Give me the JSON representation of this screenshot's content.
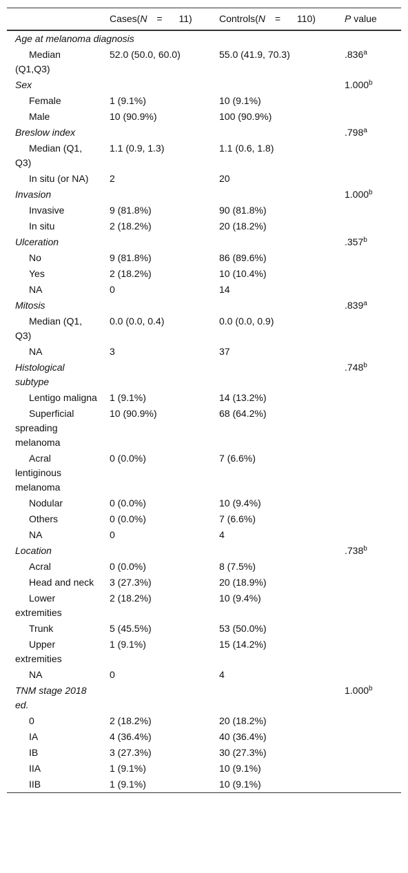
{
  "table": {
    "header": {
      "cases": {
        "pre": "Cases(",
        "var": "N",
        "eq": "=",
        "n": "11)"
      },
      "controls": {
        "pre": "Controls(",
        "var": "N",
        "eq": "=",
        "n": "110)"
      },
      "p": {
        "var": "P",
        "post": " value"
      }
    },
    "groups": [
      {
        "title": "Age at melanoma diagnosis",
        "rows": [
          {
            "label": "Median (Q1,Q3)",
            "cases": "52.0 (50.0, 60.0)",
            "controls": "55.0 (41.9, 70.3)",
            "p": ".836",
            "p_note": "a"
          }
        ]
      },
      {
        "title": "Sex",
        "p": "1.000",
        "p_note": "b",
        "rows": [
          {
            "label": "Female",
            "cases": "1 (9.1%)",
            "controls": "10 (9.1%)"
          },
          {
            "label": "Male",
            "cases": "10 (90.9%)",
            "controls": "100 (90.9%)"
          }
        ]
      },
      {
        "title": "Breslow index",
        "p": ".798",
        "p_note": "a",
        "rows": [
          {
            "label": "Median (Q1, Q3)",
            "cases": "1.1 (0.9, 1.3)",
            "controls": "1.1 (0.6, 1.8)"
          },
          {
            "label": "In situ (or NA)",
            "cases": "2",
            "controls": "20"
          }
        ]
      },
      {
        "title": "Invasion",
        "p": "1.000",
        "p_note": "b",
        "rows": [
          {
            "label": "Invasive",
            "cases": "9 (81.8%)",
            "controls": "90 (81.8%)"
          },
          {
            "label": "In situ",
            "cases": "2 (18.2%)",
            "controls": "20 (18.2%)"
          }
        ]
      },
      {
        "title": "Ulceration",
        "p": ".357",
        "p_note": "b",
        "rows": [
          {
            "label": "No",
            "cases": "9 (81.8%)",
            "controls": "86 (89.6%)"
          },
          {
            "label": "Yes",
            "cases": "2 (18.2%)",
            "controls": "10 (10.4%)"
          },
          {
            "label": "NA",
            "cases": "0",
            "controls": "14"
          }
        ]
      },
      {
        "title": "Mitosis",
        "p": ".839",
        "p_note": "a",
        "rows": [
          {
            "label": "Median (Q1, Q3)",
            "cases": "0.0 (0.0, 0.4)",
            "controls": "0.0 (0.0, 0.9)"
          },
          {
            "label": "NA",
            "cases": "3",
            "controls": "37"
          }
        ]
      },
      {
        "title": "Histological subtype",
        "p": ".748",
        "p_note": "b",
        "rows": [
          {
            "label": "Lentigo maligna",
            "cases": "1 (9.1%)",
            "controls": "14 (13.2%)"
          },
          {
            "label": "Superficial spreading melanoma",
            "cases": "10 (90.9%)",
            "controls": "68 (64.2%)"
          },
          {
            "label": "Acral lentiginous melanoma",
            "cases": "0 (0.0%)",
            "controls": "7 (6.6%)"
          },
          {
            "label": "Nodular",
            "cases": "0 (0.0%)",
            "controls": "10 (9.4%)"
          },
          {
            "label": "Others",
            "cases": "0 (0.0%)",
            "controls": "7 (6.6%)"
          },
          {
            "label": "NA",
            "cases": "0",
            "controls": "4"
          }
        ]
      },
      {
        "title": "Location",
        "p": ".738",
        "p_note": "b",
        "rows": [
          {
            "label": "Acral",
            "cases": "0 (0.0%)",
            "controls": "8 (7.5%)"
          },
          {
            "label": "Head and neck",
            "cases": "3 (27.3%)",
            "controls": "20 (18.9%)"
          },
          {
            "label": "Lower extremities",
            "cases": "2 (18.2%)",
            "controls": "10 (9.4%)"
          },
          {
            "label": "Trunk",
            "cases": "5 (45.5%)",
            "controls": "53 (50.0%)"
          },
          {
            "label": "Upper extremities",
            "cases": "1 (9.1%)",
            "controls": "15 (14.2%)"
          },
          {
            "label": "NA",
            "cases": "0",
            "controls": "4"
          }
        ]
      },
      {
        "title": "TNM stage 2018 ed.",
        "p": "1.000",
        "p_note": "b",
        "rows": [
          {
            "label": "0",
            "cases": "2 (18.2%)",
            "controls": "20 (18.2%)"
          },
          {
            "label": "IA",
            "cases": "4 (36.4%)",
            "controls": "40 (36.4%)"
          },
          {
            "label": "IB",
            "cases": "3 (27.3%)",
            "controls": "30 (27.3%)"
          },
          {
            "label": "IIA",
            "cases": "1 (9.1%)",
            "controls": "10 (9.1%)"
          },
          {
            "label": "IIB",
            "cases": "1 (9.1%)",
            "controls": "10 (9.1%)"
          }
        ]
      }
    ]
  }
}
